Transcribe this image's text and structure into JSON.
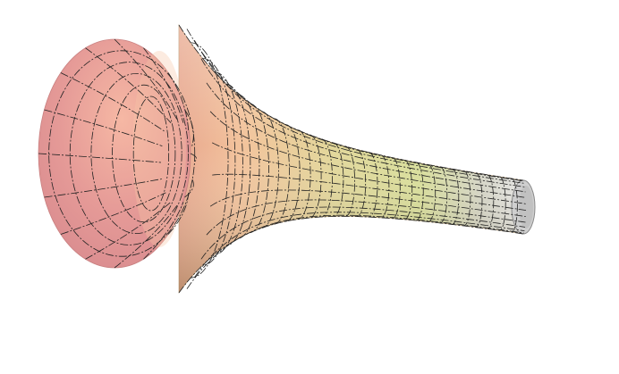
{
  "figure": {
    "subject": "surface-of-revolution-trumpet",
    "colors": {
      "background": "#ffffff",
      "bell": "#d98c8c",
      "bell_highlight": "#f2b6a0",
      "middle": "#d9cf8c",
      "tail": "#e6e6e6",
      "mesh_lines": "#222222",
      "inner_opening": "#cfcfcf"
    },
    "mesh": {
      "axial_lines": 28,
      "radial_lines": 14,
      "line_style": "dashed"
    }
  }
}
